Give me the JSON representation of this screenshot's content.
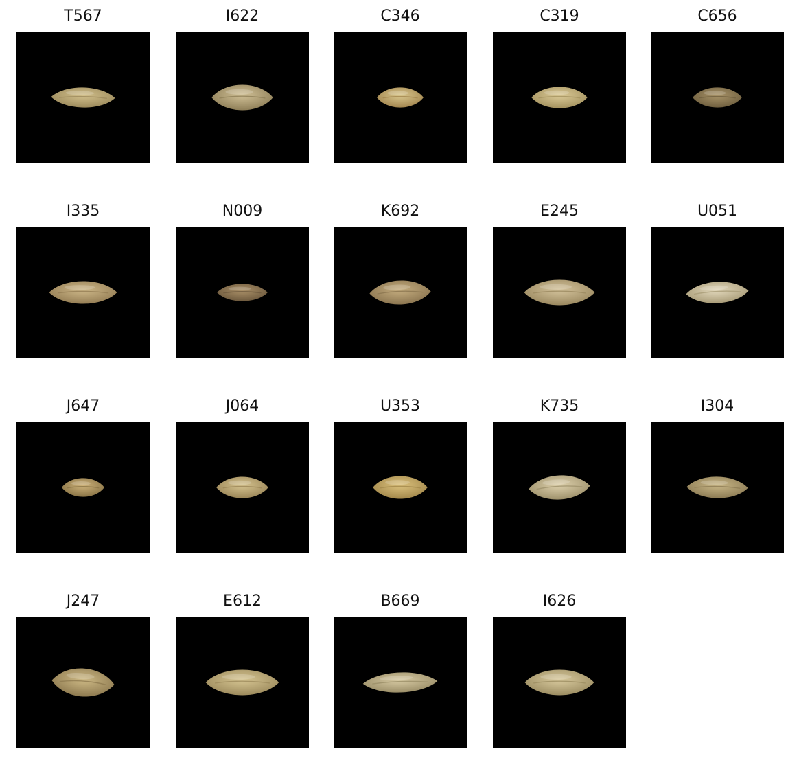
{
  "figure": {
    "panels": [
      {
        "title": "T567",
        "grain": {
          "length": 0.48,
          "width": 0.15,
          "color": "#d2c08c",
          "shade": "#9c8a5c",
          "tilt": 1
        }
      },
      {
        "title": "I622",
        "grain": {
          "length": 0.46,
          "width": 0.19,
          "color": "#d1c197",
          "shade": "#8f7f58",
          "tilt": 0
        }
      },
      {
        "title": "C346",
        "grain": {
          "length": 0.35,
          "width": 0.15,
          "color": "#d9c78e",
          "shade": "#a3864f",
          "tilt": 0
        }
      },
      {
        "title": "C319",
        "grain": {
          "length": 0.42,
          "width": 0.16,
          "color": "#dccb98",
          "shade": "#a4925f",
          "tilt": 0
        }
      },
      {
        "title": "C656",
        "grain": {
          "length": 0.37,
          "width": 0.15,
          "color": "#a99469",
          "shade": "#6f5f3f",
          "tilt": 0
        }
      },
      {
        "title": "I335",
        "grain": {
          "length": 0.51,
          "width": 0.17,
          "color": "#cdb788",
          "shade": "#957e55",
          "tilt": 0
        }
      },
      {
        "title": "N009",
        "grain": {
          "length": 0.38,
          "width": 0.13,
          "color": "#a98f67",
          "shade": "#6e5a3e",
          "tilt": 0
        }
      },
      {
        "title": "K692",
        "grain": {
          "length": 0.46,
          "width": 0.18,
          "color": "#c5ad7f",
          "shade": "#8b7550",
          "tilt": -2
        }
      },
      {
        "title": "E245",
        "grain": {
          "length": 0.53,
          "width": 0.19,
          "color": "#d4c39c",
          "shade": "#9b8960",
          "tilt": 0
        }
      },
      {
        "title": "U051",
        "grain": {
          "length": 0.47,
          "width": 0.16,
          "color": "#e2d8bc",
          "shade": "#a99c78",
          "tilt": -3
        }
      },
      {
        "title": "J647",
        "grain": {
          "length": 0.32,
          "width": 0.14,
          "color": "#cdb27a",
          "shade": "#8a7446",
          "tilt": 0
        }
      },
      {
        "title": "J064",
        "grain": {
          "length": 0.39,
          "width": 0.16,
          "color": "#d6c490",
          "shade": "#9b8658",
          "tilt": 0
        }
      },
      {
        "title": "U353",
        "grain": {
          "length": 0.41,
          "width": 0.17,
          "color": "#dcc27e",
          "shade": "#a3884b",
          "tilt": 0
        }
      },
      {
        "title": "K735",
        "grain": {
          "length": 0.46,
          "width": 0.18,
          "color": "#ded1ad",
          "shade": "#9e916b",
          "tilt": -3
        }
      },
      {
        "title": "I304",
        "grain": {
          "length": 0.46,
          "width": 0.16,
          "color": "#c9b787",
          "shade": "#8d7c55",
          "tilt": 1
        }
      },
      {
        "title": "J247",
        "grain": {
          "length": 0.47,
          "width": 0.21,
          "color": "#cdb985",
          "shade": "#8e7a50",
          "tilt": 4
        }
      },
      {
        "title": "E612",
        "grain": {
          "length": 0.55,
          "width": 0.19,
          "color": "#d6c592",
          "shade": "#9d8b5d",
          "tilt": 0
        }
      },
      {
        "title": "B669",
        "grain": {
          "length": 0.56,
          "width": 0.15,
          "color": "#d6c9a2",
          "shade": "#9b8e68",
          "tilt": -2
        }
      },
      {
        "title": "I626",
        "grain": {
          "length": 0.52,
          "width": 0.19,
          "color": "#d9ca9e",
          "shade": "#9c8d62",
          "tilt": 0
        }
      }
    ]
  }
}
